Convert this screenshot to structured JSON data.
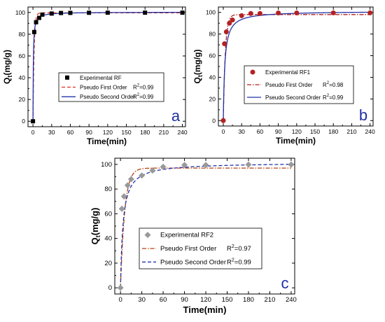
{
  "chart_data": [
    {
      "id": "a",
      "type": "scatter",
      "panel_label": "a",
      "xlabel": "Time(min)",
      "ylabel": "Qt(mg/g)",
      "xlim": [
        -8,
        245
      ],
      "ylim": [
        -5,
        105
      ],
      "xticks": [
        0,
        30,
        60,
        90,
        120,
        150,
        180,
        210,
        240
      ],
      "yticks": [
        0,
        20,
        40,
        60,
        80,
        100
      ],
      "grid": false,
      "legend_position": "center",
      "series": [
        {
          "name": "Experimental RF",
          "kind": "markers",
          "marker": "square",
          "color": "#000000",
          "x": [
            0,
            2,
            5,
            10,
            15,
            30,
            45,
            60,
            90,
            120,
            180,
            240
          ],
          "y": [
            0,
            82,
            91,
            95,
            98,
            99,
            99.5,
            99.6,
            99.7,
            99.8,
            99.8,
            99.8
          ]
        },
        {
          "name": "Pseudo First Order",
          "kind": "line",
          "dash": "5,3",
          "color": "#e0301e",
          "model": "pfo",
          "qe": 99.6,
          "k": 0.58,
          "r2_label": "R²=0.99"
        },
        {
          "name": "Pseudo Second Order",
          "kind": "line",
          "dash": "",
          "color": "#2233aa",
          "model": "pso",
          "qe": 100.3,
          "k": 0.02,
          "r2_label": "R²=0.99"
        }
      ]
    },
    {
      "id": "b",
      "type": "scatter",
      "panel_label": "b",
      "xlabel": "Time(min)",
      "ylabel": "Qt(mg/g)",
      "xlim": [
        -8,
        245
      ],
      "ylim": [
        -5,
        105
      ],
      "xticks": [
        0,
        30,
        60,
        90,
        120,
        150,
        180,
        210,
        240
      ],
      "yticks": [
        0,
        20,
        40,
        60,
        80,
        100
      ],
      "grid": false,
      "legend_position": "center",
      "series": [
        {
          "name": "Experimental RF1",
          "kind": "markers",
          "marker": "circle",
          "color": "#b22222",
          "x": [
            0,
            2,
            5,
            10,
            15,
            30,
            45,
            60,
            90,
            120,
            180,
            240
          ],
          "y": [
            0,
            71,
            82,
            90,
            93,
            97,
            99,
            99,
            99.5,
            99.5,
            99.6,
            99.6
          ]
        },
        {
          "name": "Pseudo First Order",
          "kind": "line",
          "dash": "6,2,1.5,2",
          "color": "#b22222",
          "model": "pfo",
          "qe": 98,
          "k": 0.3,
          "r2_label": "R²=0.98"
        },
        {
          "name": "Pseudo Second Order",
          "kind": "line",
          "dash": "",
          "color": "#2233aa",
          "model": "pso",
          "qe": 101.2,
          "k": 0.004,
          "r2_label": "R²=0.99"
        }
      ]
    },
    {
      "id": "c",
      "type": "scatter",
      "panel_label": "c",
      "xlabel": "Time(min)",
      "ylabel": "Qt(mg/g)",
      "xlim": [
        -8,
        245
      ],
      "ylim": [
        -5,
        105
      ],
      "xticks": [
        0,
        30,
        60,
        90,
        120,
        150,
        180,
        210,
        240
      ],
      "yticks": [
        0,
        20,
        40,
        60,
        80,
        100
      ],
      "grid": false,
      "legend_position": "bottom-center",
      "series": [
        {
          "name": "Experimental RF2",
          "kind": "markers",
          "marker": "diamond",
          "color": "#999999",
          "x": [
            0,
            2,
            5,
            10,
            15,
            30,
            45,
            60,
            90,
            120,
            180,
            240
          ],
          "y": [
            0,
            64,
            74,
            83,
            88,
            91,
            95,
            98,
            99.5,
            99.5,
            99.8,
            99.8
          ]
        },
        {
          "name": "Pseudo First Order",
          "kind": "line",
          "dash": "6,2,1.5,2",
          "color": "#b8420e",
          "model": "pfo",
          "qe": 97,
          "k": 0.17,
          "r2_label": "R²=0.97"
        },
        {
          "name": "Pseudo Second Order",
          "kind": "line",
          "dash": "5,3",
          "color": "#2233aa",
          "model": "pso",
          "qe": 101.5,
          "k": 0.0028,
          "r2_label": "R²=0.99"
        }
      ]
    }
  ]
}
